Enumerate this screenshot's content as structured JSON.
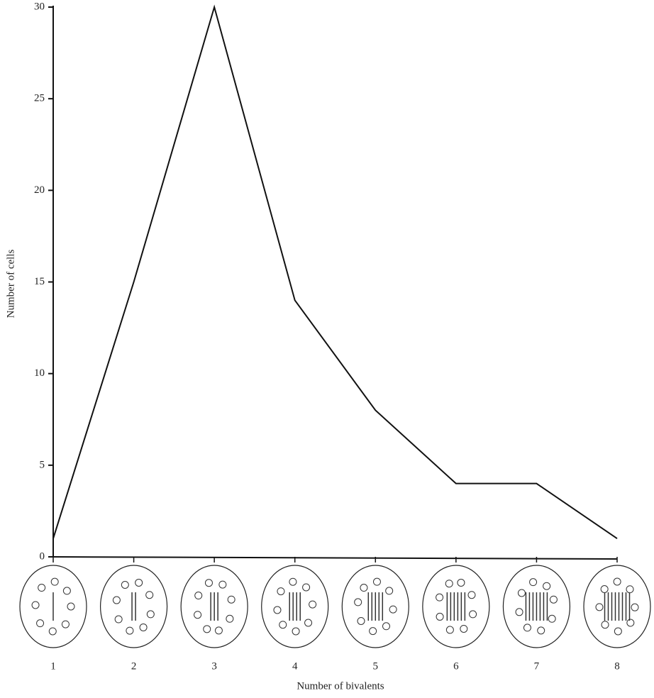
{
  "chart_data": {
    "type": "line",
    "x_label": "Number of bivalents",
    "y_label": "Number of cells",
    "x": [
      1,
      2,
      3,
      4,
      5,
      6,
      7,
      8
    ],
    "values": [
      1,
      15,
      30,
      14,
      8,
      4,
      4,
      1
    ],
    "color": "#111111",
    "xlim": [
      1,
      8
    ],
    "xticks": [
      1,
      2,
      3,
      4,
      5,
      6,
      7,
      8
    ],
    "ylim": [
      0,
      30
    ],
    "yticks": [
      0,
      5,
      10,
      15,
      20,
      25,
      30
    ],
    "grid": false
  }
}
